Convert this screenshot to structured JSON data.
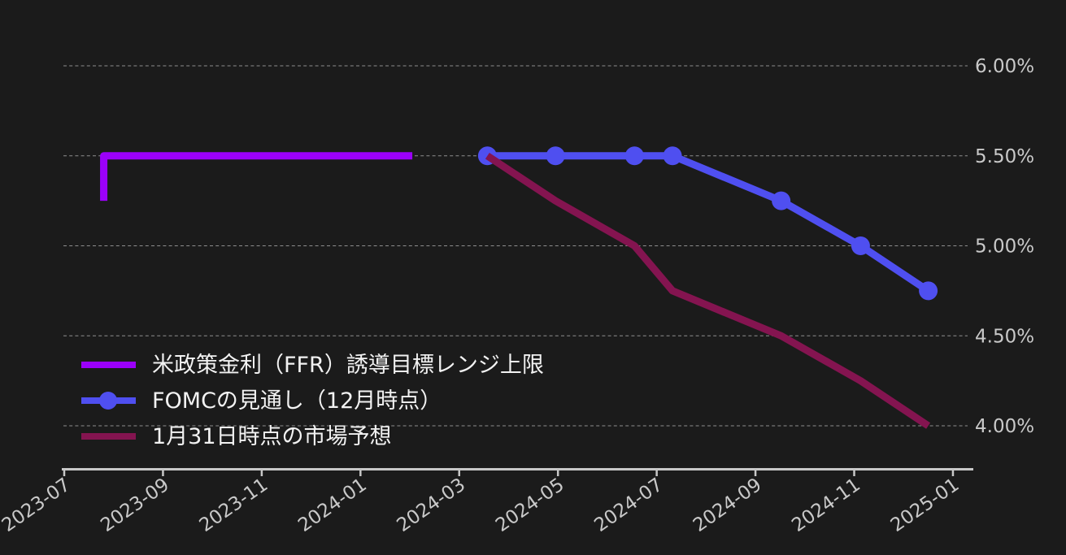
{
  "chart_data": {
    "type": "line",
    "title": "",
    "xlabel": "",
    "ylabel": "",
    "x_unit": "months since 2023-07",
    "grid": "horizontal-dashed",
    "legend_position": "inside-bottom-left",
    "background_color": "#1b1b1b",
    "axis_color": "#c8c8c8",
    "tick_label_color": "#c9c9c9",
    "ylim": [
      3.78,
      6.28
    ],
    "y_ticks": [
      {
        "label": "6.00%",
        "value": 6.0
      },
      {
        "label": "5.50%",
        "value": 5.5
      },
      {
        "label": "5.00%",
        "value": 5.0
      },
      {
        "label": "4.50%",
        "value": 4.5
      },
      {
        "label": "4.00%",
        "value": 4.0
      }
    ],
    "x_ticks": [
      {
        "label": "2023-07",
        "m": 0
      },
      {
        "label": "2023-09",
        "m": 2
      },
      {
        "label": "2023-11",
        "m": 4
      },
      {
        "label": "2024-01",
        "m": 6
      },
      {
        "label": "2024-03",
        "m": 8
      },
      {
        "label": "2024-05",
        "m": 10
      },
      {
        "label": "2024-07",
        "m": 12
      },
      {
        "label": "2024-09",
        "m": 14
      },
      {
        "label": "2024-11",
        "m": 16
      },
      {
        "label": "2025-01",
        "m": 18
      }
    ],
    "series": [
      {
        "name": "米政策金利（FFR）誘導目標レンジ上限",
        "color": "#9b00fa",
        "line_width": 9,
        "marker": false,
        "points": [
          {
            "date": "2023-07-25",
            "m": 0.8,
            "value": 5.25
          },
          {
            "date": "2023-07-26",
            "m": 0.8,
            "value": 5.5
          },
          {
            "date": "2024-02-01",
            "m": 7.05,
            "value": 5.5
          }
        ]
      },
      {
        "name": "FOMCの見通し（12月時点）",
        "color": "#4f4ff0",
        "line_width": 9,
        "marker": true,
        "marker_radius": 11.5,
        "points": [
          {
            "date": "2024-03",
            "m": 8.57,
            "value": 5.5
          },
          {
            "date": "2024-05",
            "m": 9.95,
            "value": 5.5
          },
          {
            "date": "2024-06",
            "m": 11.55,
            "value": 5.5
          },
          {
            "date": "2024-07",
            "m": 12.32,
            "value": 5.5
          },
          {
            "date": "2024-09",
            "m": 14.52,
            "value": 5.25
          },
          {
            "date": "2024-11",
            "m": 16.13,
            "value": 5.0
          },
          {
            "date": "2024-12",
            "m": 17.5,
            "value": 4.75
          }
        ]
      },
      {
        "name": "1月31日時点の市場予想",
        "color": "#841450",
        "line_width": 9,
        "marker": false,
        "points": [
          {
            "date": "2024-03",
            "m": 8.57,
            "value": 5.5
          },
          {
            "date": "2024-05",
            "m": 9.95,
            "value": 5.25
          },
          {
            "date": "2024-06",
            "m": 11.55,
            "value": 5.0
          },
          {
            "date": "2024-07",
            "m": 12.32,
            "value": 4.75
          },
          {
            "date": "2024-09",
            "m": 14.52,
            "value": 4.5
          },
          {
            "date": "2024-11",
            "m": 16.13,
            "value": 4.25
          },
          {
            "date": "2024-12",
            "m": 17.5,
            "value": 4.0
          }
        ]
      }
    ]
  }
}
